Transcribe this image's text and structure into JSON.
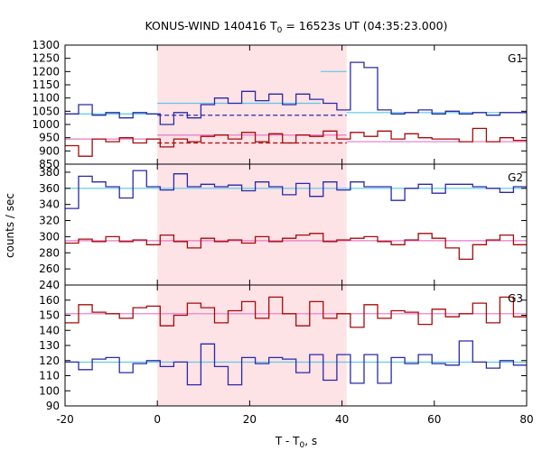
{
  "title": {
    "main": "KONUS-WIND 140416 T",
    "sub": "0",
    "rest": " = 16523s UT (04:35:23.000)"
  },
  "xlabel": {
    "main": "T - T",
    "sub": "0",
    "rest": ", s"
  },
  "ylabel": "counts / sec",
  "colors": {
    "blue": "#2a2aa8",
    "red": "#a80a0a",
    "cyan": "#58c8e8",
    "pink": "#e878c8",
    "shade": "#fde2e6"
  },
  "chart_data": {
    "type": "line",
    "style": "step",
    "xlim": [
      -20,
      80
    ],
    "xticks": [
      -20,
      0,
      20,
      40,
      60,
      80
    ],
    "shaded_region": [
      0,
      41
    ],
    "panels": [
      {
        "label": "G1",
        "ylim": [
          850,
          1300
        ],
        "yticks": [
          850,
          900,
          950,
          1000,
          1050,
          1100,
          1150,
          1200,
          1250,
          1300
        ],
        "series": [
          {
            "color": "blue",
            "x0": -20,
            "dx": 2.944,
            "values": [
              1040,
              1075,
              1035,
              1045,
              1025,
              1045,
              1040,
              1000,
              1045,
              1025,
              1075,
              1100,
              1080,
              1125,
              1090,
              1115,
              1075,
              1115,
              1095,
              1080,
              1055,
              1235,
              1215,
              1055,
              1040,
              1045,
              1055,
              1040,
              1050,
              1040,
              1045,
              1035,
              1045,
              1045,
              1040
            ]
          },
          {
            "color": "red",
            "x0": -20,
            "dx": 2.944,
            "values": [
              920,
              880,
              945,
              935,
              950,
              930,
              945,
              915,
              945,
              935,
              955,
              960,
              945,
              970,
              935,
              965,
              930,
              960,
              955,
              975,
              945,
              970,
              955,
              975,
              945,
              965,
              950,
              945,
              945,
              935,
              985,
              935,
              950,
              940,
              965
            ]
          }
        ],
        "fits": [
          {
            "color": "cyan",
            "style": "solid",
            "segments": [
              [
                -20,
                0,
                1040,
                1040
              ],
              [
                0,
                35.4,
                1080,
                1080
              ],
              [
                35.4,
                41,
                1200,
                1200
              ],
              [
                41,
                80,
                1045,
                1045
              ]
            ]
          },
          {
            "color": "blue",
            "style": "dashed",
            "segments": [
              [
                0,
                41,
                1035,
                1035
              ]
            ]
          },
          {
            "color": "pink",
            "style": "solid",
            "segments": [
              [
                -20,
                0,
                945,
                945
              ],
              [
                0,
                41,
                960,
                960
              ],
              [
                41,
                80,
                935,
                935
              ]
            ]
          },
          {
            "color": "red",
            "style": "dashed",
            "segments": [
              [
                0,
                41,
                930,
                930
              ]
            ]
          }
        ]
      },
      {
        "label": "G2",
        "ylim": [
          240,
          390
        ],
        "yticks": [
          240,
          260,
          280,
          300,
          320,
          340,
          360,
          380
        ],
        "series": [
          {
            "color": "blue",
            "x0": -20,
            "dx": 2.944,
            "values": [
              335,
              375,
              368,
              362,
              348,
              382,
              362,
              358,
              378,
              362,
              365,
              362,
              364,
              357,
              368,
              362,
              352,
              366,
              350,
              368,
              358,
              368,
              362,
              362,
              345,
              360,
              365,
              354,
              365,
              365,
              362,
              360,
              355,
              362,
              348,
              362
            ]
          },
          {
            "color": "red",
            "x0": -20,
            "dx": 2.944,
            "values": [
              292,
              297,
              294,
              300,
              294,
              296,
              290,
              302,
              294,
              286,
              298,
              294,
              296,
              292,
              300,
              294,
              298,
              302,
              304,
              294,
              296,
              298,
              300,
              294,
              290,
              296,
              304,
              298,
              286,
              272,
              290,
              296,
              302,
              290,
              298
            ]
          }
        ],
        "fits": [
          {
            "color": "cyan",
            "style": "solid",
            "segments": [
              [
                -20,
                80,
                360,
                360
              ]
            ]
          },
          {
            "color": "pink",
            "style": "solid",
            "segments": [
              [
                -20,
                80,
                295,
                295
              ]
            ]
          }
        ]
      },
      {
        "label": "G3",
        "ylim": [
          90,
          170
        ],
        "yticks": [
          90,
          100,
          110,
          120,
          130,
          140,
          150,
          160
        ],
        "series": [
          {
            "color": "blue",
            "x0": -20,
            "dx": 2.944,
            "values": [
              119,
              114,
              121,
              122,
              112,
              118,
              120,
              116,
              119,
              104,
              131,
              116,
              104,
              122,
              118,
              122,
              121,
              112,
              124,
              107,
              124,
              105,
              124,
              105,
              122,
              118,
              124,
              118,
              117,
              133,
              119,
              115,
              120,
              117,
              118,
              112,
              120,
              118,
              115,
              119
            ]
          },
          {
            "color": "red",
            "x0": -20,
            "dx": 2.944,
            "values": [
              145,
              157,
              152,
              151,
              148,
              155,
              156,
              143,
              150,
              158,
              155,
              145,
              153,
              159,
              148,
              162,
              151,
              143,
              159,
              148,
              151,
              142,
              157,
              148,
              153,
              152,
              144,
              154,
              149,
              151,
              158,
              145,
              162,
              149,
              152
            ]
          }
        ],
        "fits": [
          {
            "color": "cyan",
            "style": "solid",
            "segments": [
              [
                -20,
                80,
                119,
                119
              ]
            ]
          },
          {
            "color": "pink",
            "style": "solid",
            "segments": [
              [
                -20,
                80,
                151,
                151
              ]
            ]
          }
        ]
      }
    ]
  }
}
